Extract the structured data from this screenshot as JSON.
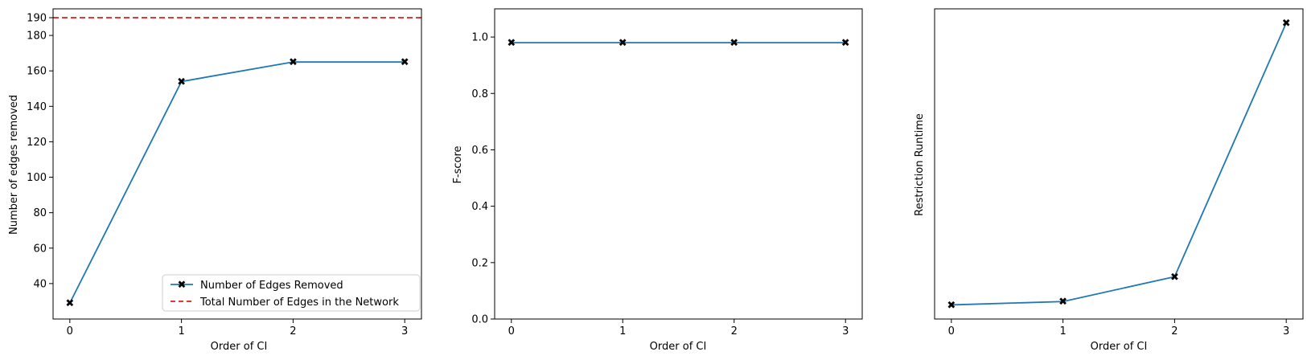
{
  "colors": {
    "line": "#1f77b4",
    "marker": "#d62728",
    "reference": "#e31a1c",
    "axis": "#000000",
    "background": "#ffffff"
  },
  "chart_data": [
    {
      "type": "line",
      "x": [
        0,
        1,
        2,
        3
      ],
      "x_ticks": [
        "0",
        "1",
        "2",
        "3"
      ],
      "xlim": [
        -0.15,
        3.15
      ],
      "xlabel": "Order of CI",
      "ylabel": "Number of edges removed",
      "ylim": [
        20,
        195
      ],
      "y_ticks": [
        40,
        60,
        80,
        100,
        120,
        140,
        160,
        180,
        190
      ],
      "series": [
        {
          "name": "Number of Edges Removed",
          "values": [
            29,
            154,
            165,
            165
          ],
          "marker": "X",
          "style": "solid"
        }
      ],
      "reference_lines": [
        {
          "name": "Total Number of Edges in the Network",
          "y": 190,
          "style": "dashed"
        }
      ],
      "legend": {
        "placement": "lower-right",
        "entries": [
          "Number of Edges Removed",
          "Total Number of Edges in the Network"
        ]
      },
      "grid": false
    },
    {
      "type": "line",
      "x": [
        0,
        1,
        2,
        3
      ],
      "x_ticks": [
        "0",
        "1",
        "2",
        "3"
      ],
      "xlim": [
        -0.15,
        3.15
      ],
      "xlabel": "Order of CI",
      "ylabel": "F-score",
      "ylim": [
        0,
        1.1
      ],
      "y_ticks": [
        "0.0",
        "0.2",
        "0.4",
        "0.6",
        "0.8",
        "1.0"
      ],
      "series": [
        {
          "values": [
            0.98,
            0.98,
            0.98,
            0.98
          ],
          "marker": "X",
          "style": "solid"
        }
      ],
      "grid": false
    },
    {
      "type": "line",
      "x": [
        0,
        1,
        2,
        3
      ],
      "x_ticks": [
        "0",
        "1",
        "2",
        "3"
      ],
      "xlim": [
        -0.15,
        3.15
      ],
      "xlabel": "Order of CI",
      "ylabel": "Restriction Runtime",
      "y_ticks": [],
      "ylim": [
        -0.05,
        1.05
      ],
      "series": [
        {
          "values": [
            0.0,
            0.012,
            0.1,
            1.0
          ],
          "marker": "X",
          "style": "solid"
        }
      ],
      "grid": false
    }
  ]
}
